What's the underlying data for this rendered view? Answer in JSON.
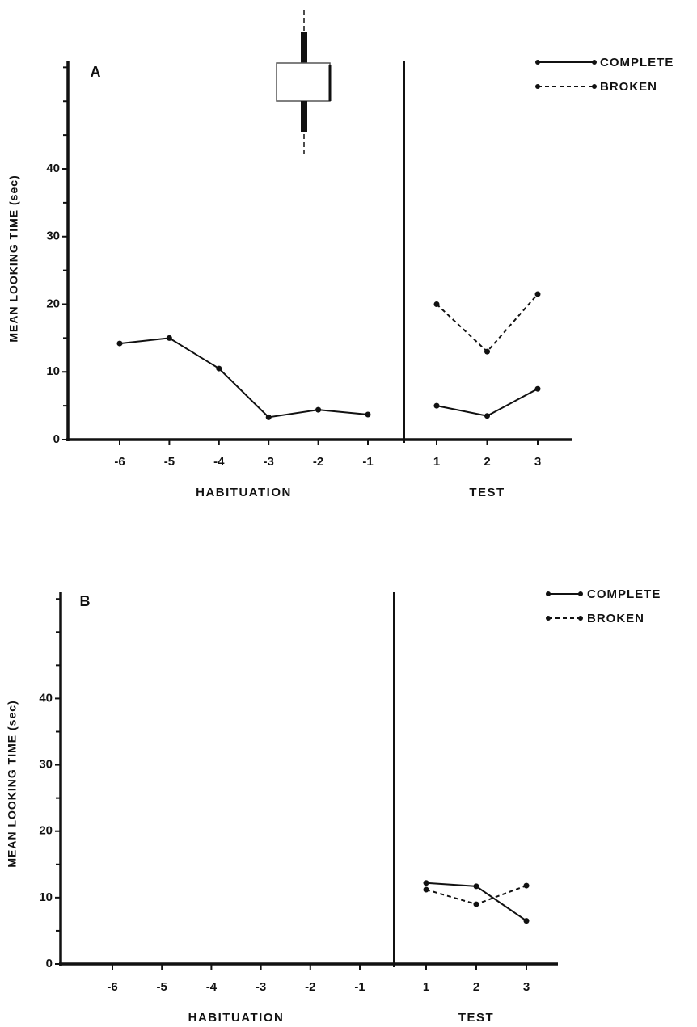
{
  "chart_data": [
    {
      "type": "line",
      "panel_label": "A",
      "y_label": "MEAN LOOKING TIME (sec)",
      "ylim": [
        0,
        56
      ],
      "yticks": [
        0,
        10,
        20,
        30,
        40
      ],
      "yminor_ticks": [
        5,
        15,
        25,
        35,
        45,
        50,
        55
      ],
      "legend": [
        {
          "name": "COMPLETE",
          "line_style": "solid"
        },
        {
          "name": "BROKEN",
          "line_style": "dashed"
        }
      ],
      "sections": [
        {
          "label": "HABITUATION",
          "categories": [
            "-6",
            "-5",
            "-4",
            "-3",
            "-2",
            "-1"
          ],
          "series": [
            {
              "name": "COMPLETE",
              "color": "#111111",
              "line_style": "solid",
              "values": [
                14.2,
                15,
                10.5,
                3.3,
                4.4,
                3.7
              ]
            }
          ]
        },
        {
          "label": "TEST",
          "categories": [
            "1",
            "2",
            "3"
          ],
          "series": [
            {
              "name": "COMPLETE",
              "color": "#111111",
              "line_style": "solid",
              "values": [
                5,
                3.5,
                7.5
              ]
            },
            {
              "name": "BROKEN",
              "color": "#111111",
              "line_style": "dashed",
              "values": [
                20,
                13,
                21.5
              ]
            }
          ]
        }
      ]
    },
    {
      "type": "line",
      "panel_label": "B",
      "y_label": "MEAN LOOKING TIME (sec)",
      "ylim": [
        0,
        56
      ],
      "yticks": [
        0,
        10,
        20,
        30,
        40
      ],
      "yminor_ticks": [
        5,
        15,
        25,
        35,
        45,
        50,
        55
      ],
      "legend": [
        {
          "name": "COMPLETE",
          "line_style": "solid"
        },
        {
          "name": "BROKEN",
          "line_style": "dashed"
        }
      ],
      "sections": [
        {
          "label": "HABITUATION",
          "categories": [
            "-6",
            "-5",
            "-4",
            "-3",
            "-2",
            "-1"
          ],
          "series": []
        },
        {
          "label": "TEST",
          "categories": [
            "1",
            "2",
            "3"
          ],
          "series": [
            {
              "name": "COMPLETE",
              "color": "#111111",
              "line_style": "solid",
              "values": [
                12.2,
                11.7,
                6.5
              ]
            },
            {
              "name": "BROKEN",
              "color": "#111111",
              "line_style": "dashed",
              "values": [
                11.2,
                9,
                11.8
              ]
            }
          ]
        }
      ]
    }
  ]
}
